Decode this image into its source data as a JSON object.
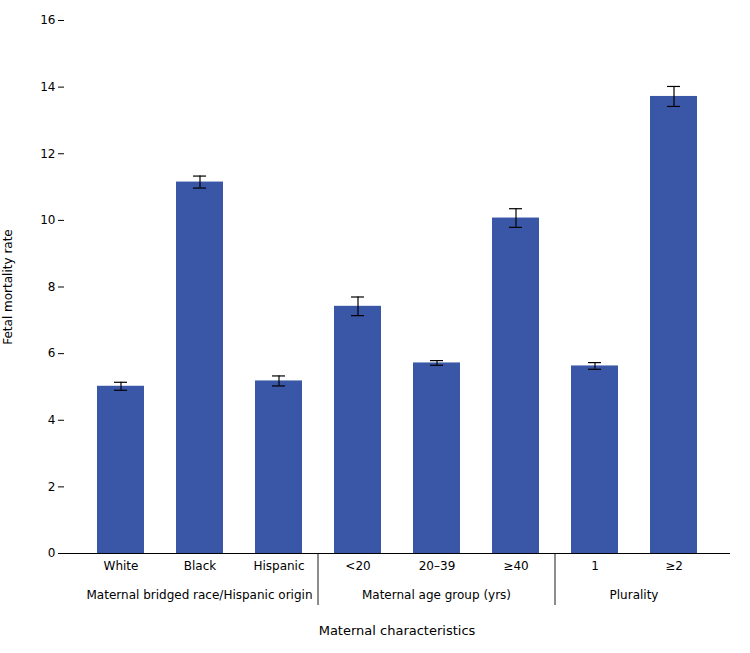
{
  "chart_data": {
    "type": "bar",
    "categories": [
      "White",
      "Black",
      "Hispanic",
      "<20",
      "20–39",
      "≥40",
      "1",
      "≥2"
    ],
    "values": [
      5.02,
      11.15,
      5.18,
      7.42,
      5.72,
      10.07,
      5.63,
      13.72
    ],
    "errors": [
      0.12,
      0.18,
      0.15,
      0.28,
      0.07,
      0.28,
      0.1,
      0.3
    ],
    "color": "#3A56A7",
    "xlabel": "Maternal characteristics",
    "ylabel": "Fetal mortality rate",
    "ylim": [
      0,
      16
    ],
    "yticks": [
      0,
      2,
      4,
      6,
      8,
      10,
      12,
      14,
      16
    ],
    "grid": false,
    "groups": [
      {
        "name": "Maternal bridged race/Hispanic origin",
        "categories": [
          "White",
          "Black",
          "Hispanic"
        ]
      },
      {
        "name": "Maternal age group (yrs)",
        "categories": [
          "<20",
          "20–39",
          "≥40"
        ]
      },
      {
        "name": "Plurality",
        "categories": [
          "1",
          "≥2"
        ]
      }
    ]
  }
}
